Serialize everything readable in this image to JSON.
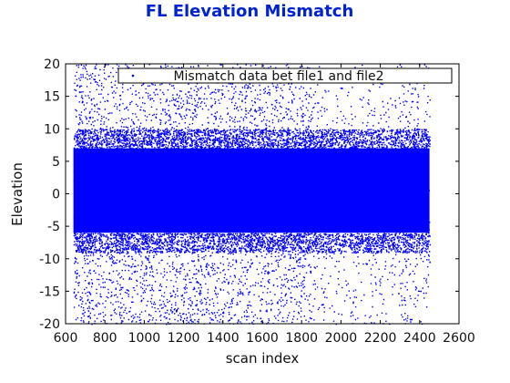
{
  "chart_data": {
    "type": "scatter",
    "title": "FL Elevation Mismatch",
    "xlabel": "scan index",
    "ylabel": "Elevation",
    "xlim": [
      600,
      2600
    ],
    "ylim": [
      -20,
      20
    ],
    "xticks": [
      "600",
      "800",
      "1000",
      "1200",
      "1400",
      "1600",
      "1800",
      "2000",
      "2200",
      "2400",
      "2600"
    ],
    "yticks": [
      "-20",
      "-15",
      "-10",
      "-5",
      "0",
      "5",
      "10",
      "15",
      "20"
    ],
    "grid": false,
    "legend_position": "top",
    "series": [
      {
        "name": "Mismatch data bet file1 and file2",
        "color": "#0000ff",
        "marker": "dot",
        "x_range": [
          640,
          2450
        ],
        "core_band": [
          -6,
          7
        ],
        "outlier_range": [
          -20,
          20
        ]
      }
    ]
  }
}
